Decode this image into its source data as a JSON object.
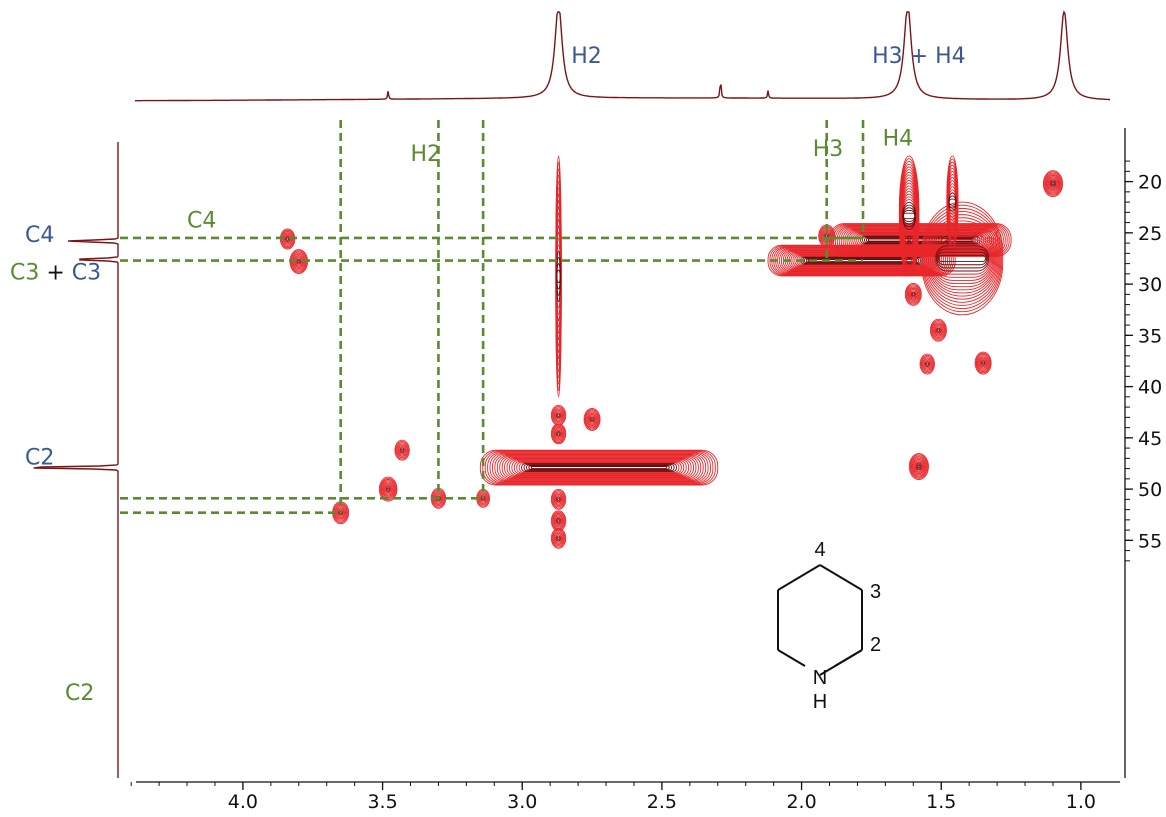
{
  "chart_data": {
    "type": "heatmap",
    "title": "",
    "x_axis": {
      "label": "",
      "range": [
        4.44,
        0.86
      ],
      "reversed": true,
      "ticks": [
        4.0,
        3.5,
        3.0,
        2.5,
        2.0,
        1.5,
        1.0
      ],
      "tick_labels": [
        "4.0",
        "3.5",
        "3.0",
        "2.5",
        "2.0",
        "1.5",
        "1.0"
      ]
    },
    "y_axis": {
      "label": "",
      "range": [
        17,
        57.5
      ],
      "reversed": true,
      "position": "right",
      "ticks": [
        20,
        25,
        30,
        35,
        40,
        45,
        50,
        55
      ],
      "tick_labels": [
        "20",
        "25",
        "30",
        "35",
        "40",
        "45",
        "50",
        "55"
      ]
    },
    "grid": false,
    "contour_color": "#e8262a",
    "projection_color": "#7a1416",
    "guide_color": "#5a8a32",
    "label_color_blue": "#3a5894",
    "label_color_green": "#5a8a32",
    "top_projection_peaks": [
      {
        "shift": 3.48,
        "height": 0.09
      },
      {
        "shift": 2.87,
        "height": 1.0
      },
      {
        "shift": 2.29,
        "height": 0.22
      },
      {
        "shift": 2.12,
        "height": 0.08
      },
      {
        "shift": 1.62,
        "height": 1.0
      },
      {
        "shift": 1.06,
        "height": 0.95
      }
    ],
    "top_projection_labels": [
      {
        "text": "H2",
        "shift": 2.77
      },
      {
        "text": "H3 + H4",
        "shift": 1.58
      }
    ],
    "left_projection_peaks": [
      {
        "shift": 25.8,
        "height": 0.5
      },
      {
        "shift": 27.6,
        "height": 0.45
      },
      {
        "shift": 47.9,
        "height": 0.95
      }
    ],
    "left_projection_labels": [
      {
        "text": "C4",
        "shift": 25.2,
        "color": "blue"
      },
      {
        "text": "C2",
        "shift": 46.9,
        "color": "blue"
      }
    ],
    "combined_label": {
      "green_part": "C3",
      "joiner": " + ",
      "blue_part": "C3",
      "shift": 28.3
    },
    "cross_peaks": [
      {
        "x": 3.84,
        "y": 25.6,
        "intensity": 0.4
      },
      {
        "x": 3.8,
        "y": 27.8,
        "intensity": 0.6
      },
      {
        "x": 3.43,
        "y": 46.2,
        "intensity": 0.4
      },
      {
        "x": 3.48,
        "y": 50.0,
        "intensity": 0.6
      },
      {
        "x": 3.3,
        "y": 50.9,
        "intensity": 0.4
      },
      {
        "x": 3.65,
        "y": 52.3,
        "intensity": 0.5
      },
      {
        "x": 3.14,
        "y": 50.9,
        "intensity": 0.3
      },
      {
        "x": 2.75,
        "y": 43.2,
        "intensity": 0.5
      },
      {
        "x": 1.91,
        "y": 25.3,
        "intensity": 0.5
      },
      {
        "x": 1.1,
        "y": 20.2,
        "intensity": 0.7
      },
      {
        "x": 1.35,
        "y": 37.7,
        "intensity": 0.5
      },
      {
        "x": 1.55,
        "y": 37.8,
        "intensity": 0.4
      },
      {
        "x": 1.58,
        "y": 47.8,
        "intensity": 0.7
      },
      {
        "x": 1.51,
        "y": 34.5,
        "intensity": 0.5
      },
      {
        "x": 1.6,
        "y": 31.0,
        "intensity": 0.5
      },
      {
        "x": 2.87,
        "y": 51.0,
        "intensity": 0.4
      },
      {
        "x": 2.87,
        "y": 53.1,
        "intensity": 0.4
      },
      {
        "x": 2.87,
        "y": 54.8,
        "intensity": 0.4
      },
      {
        "x": 2.87,
        "y": 42.8,
        "intensity": 0.4
      },
      {
        "x": 2.87,
        "y": 44.6,
        "intensity": 0.4
      }
    ],
    "cross_peak_bands": [
      {
        "x1": 3.15,
        "x2": 2.3,
        "y": 47.9,
        "half_height": 1.7,
        "intensity": 1.0
      },
      {
        "x1": 2.88,
        "x2": 2.86,
        "y1": 17.5,
        "y2": 41.0,
        "intensity": 0.8
      },
      {
        "x1": 2.12,
        "x2": 1.45,
        "y": 27.7,
        "half_height": 1.5,
        "intensity": 1.0
      },
      {
        "x1": 1.9,
        "x2": 1.25,
        "y": 25.7,
        "half_height": 1.6,
        "intensity": 0.9
      },
      {
        "x1": 1.65,
        "x2": 1.58,
        "y1": 17.5,
        "y2": 29.2,
        "intensity": 1.0
      },
      {
        "x1": 1.57,
        "x2": 1.28,
        "y1": 22.0,
        "y2": 33.0,
        "intensity": 0.7
      },
      {
        "x1": 1.48,
        "x2": 1.44,
        "y1": 17.5,
        "y2": 26.5,
        "intensity": 0.5
      }
    ],
    "guide_lines": [
      {
        "label": "C4",
        "y": 25.5,
        "x_from": 4.44,
        "x_to": 1.78
      },
      {
        "label": "C3",
        "y": 27.7,
        "x_from": 4.44,
        "x_to": 1.78
      },
      {
        "label": "C2",
        "y": 50.9,
        "x_from": 4.44,
        "x_to": 3.14
      },
      {
        "label": "C2",
        "y": 52.3,
        "x_from": 4.44,
        "x_to": 3.65
      },
      {
        "label": "H2",
        "x": 3.65,
        "y_from": 17.5,
        "y_to": 52.3
      },
      {
        "label": "H2",
        "x": 3.3,
        "y_from": 17.5,
        "y_to": 50.9
      },
      {
        "label": "H2",
        "x": 3.14,
        "y_from": 17.5,
        "y_to": 50.9
      },
      {
        "label": "H3",
        "x": 1.91,
        "y_from": 17.5,
        "y_to": 27.7
      },
      {
        "label": "H4",
        "x": 1.78,
        "y_from": 17.5,
        "y_to": 25.5
      }
    ],
    "annotations": [
      {
        "text": "H2",
        "x": 3.4,
        "y": 18.0
      },
      {
        "text": "H3",
        "x": 1.96,
        "y": 17.5
      },
      {
        "text": "H4",
        "x": 1.71,
        "y": 16.5
      },
      {
        "text": "C4",
        "x": 4.2,
        "y": 24.5
      },
      {
        "text": "C2",
        "x": 4.44,
        "y": 51.5
      }
    ],
    "structure": {
      "name": "piperidine",
      "atom_labels": [
        "4",
        "3",
        "2",
        "N",
        "H"
      ]
    }
  }
}
